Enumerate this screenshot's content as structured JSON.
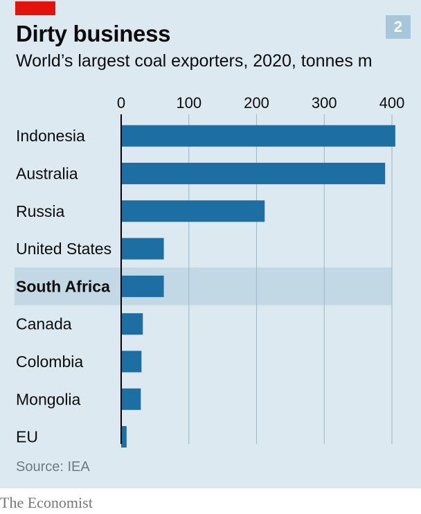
{
  "header": {
    "title": "Dirty business",
    "subtitle": "World’s largest coal exporters, 2020, tonnes m",
    "badge": "2"
  },
  "footer": {
    "source": "Source: IEA",
    "brand": "The Economist"
  },
  "colors": {
    "background": "#dde9f1",
    "bar": "#1d6fa3",
    "highlight": "#c3d8e5",
    "grid": "#a7bccb",
    "accent_red": "#e3120b",
    "axis_line": "#000000"
  },
  "chart_data": {
    "type": "bar",
    "orientation": "horizontal",
    "title": "Dirty business",
    "subtitle": "World’s largest coal exporters, 2020, tonnes m",
    "xlabel": "",
    "ylabel": "",
    "xlim": [
      0,
      410
    ],
    "xticks": [
      0,
      100,
      200,
      300,
      400
    ],
    "categories": [
      "Indonesia",
      "Australia",
      "Russia",
      "United States",
      "South Africa",
      "Canada",
      "Colombia",
      "Mongolia",
      "EU"
    ],
    "values": [
      405,
      390,
      212,
      63,
      63,
      32,
      30,
      29,
      8
    ],
    "highlighted_category": "South Africa",
    "grid": true,
    "tick_position": "top"
  }
}
